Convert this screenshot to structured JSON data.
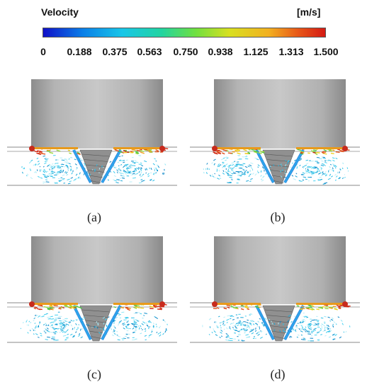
{
  "legend": {
    "title": "Velocity",
    "unit": "[m/s]",
    "ticks": [
      "0",
      "0.188",
      "0.375",
      "0.563",
      "0.750",
      "0.938",
      "1.125",
      "1.313",
      "1.500"
    ],
    "min": 0,
    "max": 1.5,
    "colormap": [
      "#1010c8",
      "#0a7fe8",
      "#18c6e8",
      "#22d4a0",
      "#6fe040",
      "#d8e020",
      "#f2b020",
      "#e85a18",
      "#d41a14"
    ]
  },
  "panels": [
    {
      "label": "(a)"
    },
    {
      "label": "(b)"
    },
    {
      "label": "(c)"
    },
    {
      "label": "(d)"
    }
  ]
}
